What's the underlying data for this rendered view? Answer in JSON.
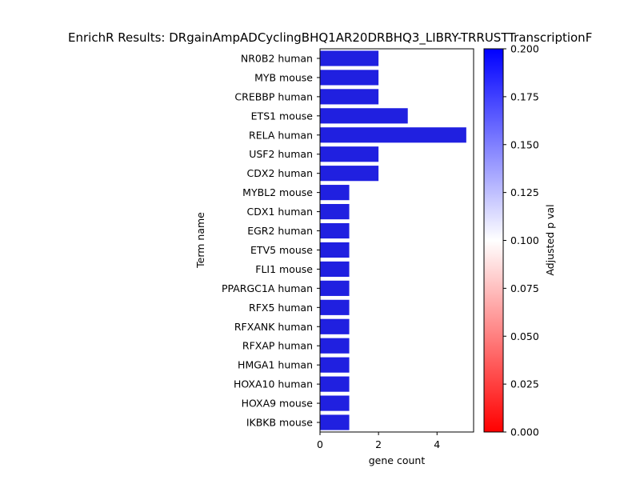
{
  "chart_data": {
    "type": "bar",
    "orientation": "horizontal",
    "title": "EnrichR Results: DRgainAmpADCyclingBHQ1AR20DRBHQ3_LIBRY-TRRUSTTranscriptionF",
    "xlabel": "gene count",
    "ylabel": "Term name",
    "xlim": [
      0,
      5.25
    ],
    "xticks": [
      0,
      2,
      4
    ],
    "grid": false,
    "categories": [
      "NR0B2 human",
      "MYB mouse",
      "CREBBP human",
      "ETS1 mouse",
      "RELA human",
      "USF2 human",
      "CDX2 human",
      "MYBL2 mouse",
      "CDX1 human",
      "EGR2 human",
      "ETV5 mouse",
      "FLI1 mouse",
      "PPARGC1A human",
      "RFX5 human",
      "RFXANK human",
      "RFXAP human",
      "HMGA1 human",
      "HOXA10 human",
      "HOXA9 mouse",
      "IKBKB mouse"
    ],
    "values": [
      2,
      2,
      2,
      3,
      5,
      2,
      2,
      1,
      1,
      1,
      1,
      1,
      1,
      1,
      1,
      1,
      1,
      1,
      1,
      1
    ],
    "bar_color": "#2020e0",
    "colorbar": {
      "label": "Adjusted p val",
      "range": [
        0.0,
        0.2
      ],
      "ticks": [
        "0.000",
        "0.025",
        "0.050",
        "0.075",
        "0.100",
        "0.125",
        "0.150",
        "0.175",
        "0.200"
      ],
      "colormap": [
        "#ff0000",
        "#ffffff",
        "#0000ff"
      ]
    }
  }
}
